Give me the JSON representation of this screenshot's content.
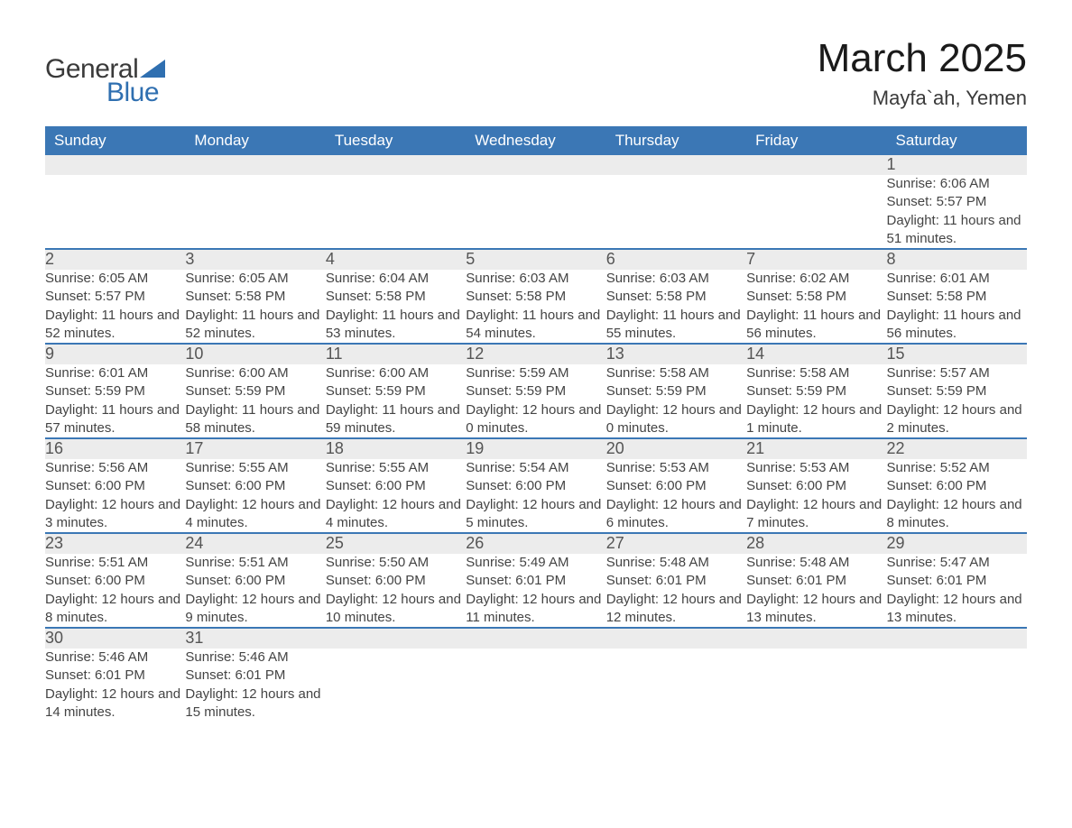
{
  "logo": {
    "text1": "General",
    "text2": "Blue",
    "tri_color": "#2f6fb0"
  },
  "title": "March 2025",
  "location": "Mayfa`ah, Yemen",
  "colors": {
    "header_bg": "#3b77b5",
    "header_fg": "#ffffff",
    "daynum_bg": "#ececec",
    "row_divider": "#3b77b5",
    "text": "#3a3a3a",
    "logo_blue": "#2f6fb0"
  },
  "typography": {
    "title_fontsize": 44,
    "location_fontsize": 22,
    "th_fontsize": 17,
    "daynum_fontsize": 18,
    "detail_fontsize": 15
  },
  "weekdays": [
    "Sunday",
    "Monday",
    "Tuesday",
    "Wednesday",
    "Thursday",
    "Friday",
    "Saturday"
  ],
  "weeks": [
    [
      null,
      null,
      null,
      null,
      null,
      null,
      {
        "n": "1",
        "sr": "Sunrise: 6:06 AM",
        "ss": "Sunset: 5:57 PM",
        "dl": "Daylight: 11 hours and 51 minutes."
      }
    ],
    [
      {
        "n": "2",
        "sr": "Sunrise: 6:05 AM",
        "ss": "Sunset: 5:57 PM",
        "dl": "Daylight: 11 hours and 52 minutes."
      },
      {
        "n": "3",
        "sr": "Sunrise: 6:05 AM",
        "ss": "Sunset: 5:58 PM",
        "dl": "Daylight: 11 hours and 52 minutes."
      },
      {
        "n": "4",
        "sr": "Sunrise: 6:04 AM",
        "ss": "Sunset: 5:58 PM",
        "dl": "Daylight: 11 hours and 53 minutes."
      },
      {
        "n": "5",
        "sr": "Sunrise: 6:03 AM",
        "ss": "Sunset: 5:58 PM",
        "dl": "Daylight: 11 hours and 54 minutes."
      },
      {
        "n": "6",
        "sr": "Sunrise: 6:03 AM",
        "ss": "Sunset: 5:58 PM",
        "dl": "Daylight: 11 hours and 55 minutes."
      },
      {
        "n": "7",
        "sr": "Sunrise: 6:02 AM",
        "ss": "Sunset: 5:58 PM",
        "dl": "Daylight: 11 hours and 56 minutes."
      },
      {
        "n": "8",
        "sr": "Sunrise: 6:01 AM",
        "ss": "Sunset: 5:58 PM",
        "dl": "Daylight: 11 hours and 56 minutes."
      }
    ],
    [
      {
        "n": "9",
        "sr": "Sunrise: 6:01 AM",
        "ss": "Sunset: 5:59 PM",
        "dl": "Daylight: 11 hours and 57 minutes."
      },
      {
        "n": "10",
        "sr": "Sunrise: 6:00 AM",
        "ss": "Sunset: 5:59 PM",
        "dl": "Daylight: 11 hours and 58 minutes."
      },
      {
        "n": "11",
        "sr": "Sunrise: 6:00 AM",
        "ss": "Sunset: 5:59 PM",
        "dl": "Daylight: 11 hours and 59 minutes."
      },
      {
        "n": "12",
        "sr": "Sunrise: 5:59 AM",
        "ss": "Sunset: 5:59 PM",
        "dl": "Daylight: 12 hours and 0 minutes."
      },
      {
        "n": "13",
        "sr": "Sunrise: 5:58 AM",
        "ss": "Sunset: 5:59 PM",
        "dl": "Daylight: 12 hours and 0 minutes."
      },
      {
        "n": "14",
        "sr": "Sunrise: 5:58 AM",
        "ss": "Sunset: 5:59 PM",
        "dl": "Daylight: 12 hours and 1 minute."
      },
      {
        "n": "15",
        "sr": "Sunrise: 5:57 AM",
        "ss": "Sunset: 5:59 PM",
        "dl": "Daylight: 12 hours and 2 minutes."
      }
    ],
    [
      {
        "n": "16",
        "sr": "Sunrise: 5:56 AM",
        "ss": "Sunset: 6:00 PM",
        "dl": "Daylight: 12 hours and 3 minutes."
      },
      {
        "n": "17",
        "sr": "Sunrise: 5:55 AM",
        "ss": "Sunset: 6:00 PM",
        "dl": "Daylight: 12 hours and 4 minutes."
      },
      {
        "n": "18",
        "sr": "Sunrise: 5:55 AM",
        "ss": "Sunset: 6:00 PM",
        "dl": "Daylight: 12 hours and 4 minutes."
      },
      {
        "n": "19",
        "sr": "Sunrise: 5:54 AM",
        "ss": "Sunset: 6:00 PM",
        "dl": "Daylight: 12 hours and 5 minutes."
      },
      {
        "n": "20",
        "sr": "Sunrise: 5:53 AM",
        "ss": "Sunset: 6:00 PM",
        "dl": "Daylight: 12 hours and 6 minutes."
      },
      {
        "n": "21",
        "sr": "Sunrise: 5:53 AM",
        "ss": "Sunset: 6:00 PM",
        "dl": "Daylight: 12 hours and 7 minutes."
      },
      {
        "n": "22",
        "sr": "Sunrise: 5:52 AM",
        "ss": "Sunset: 6:00 PM",
        "dl": "Daylight: 12 hours and 8 minutes."
      }
    ],
    [
      {
        "n": "23",
        "sr": "Sunrise: 5:51 AM",
        "ss": "Sunset: 6:00 PM",
        "dl": "Daylight: 12 hours and 8 minutes."
      },
      {
        "n": "24",
        "sr": "Sunrise: 5:51 AM",
        "ss": "Sunset: 6:00 PM",
        "dl": "Daylight: 12 hours and 9 minutes."
      },
      {
        "n": "25",
        "sr": "Sunrise: 5:50 AM",
        "ss": "Sunset: 6:00 PM",
        "dl": "Daylight: 12 hours and 10 minutes."
      },
      {
        "n": "26",
        "sr": "Sunrise: 5:49 AM",
        "ss": "Sunset: 6:01 PM",
        "dl": "Daylight: 12 hours and 11 minutes."
      },
      {
        "n": "27",
        "sr": "Sunrise: 5:48 AM",
        "ss": "Sunset: 6:01 PM",
        "dl": "Daylight: 12 hours and 12 minutes."
      },
      {
        "n": "28",
        "sr": "Sunrise: 5:48 AM",
        "ss": "Sunset: 6:01 PM",
        "dl": "Daylight: 12 hours and 13 minutes."
      },
      {
        "n": "29",
        "sr": "Sunrise: 5:47 AM",
        "ss": "Sunset: 6:01 PM",
        "dl": "Daylight: 12 hours and 13 minutes."
      }
    ],
    [
      {
        "n": "30",
        "sr": "Sunrise: 5:46 AM",
        "ss": "Sunset: 6:01 PM",
        "dl": "Daylight: 12 hours and 14 minutes."
      },
      {
        "n": "31",
        "sr": "Sunrise: 5:46 AM",
        "ss": "Sunset: 6:01 PM",
        "dl": "Daylight: 12 hours and 15 minutes."
      },
      null,
      null,
      null,
      null,
      null
    ]
  ]
}
